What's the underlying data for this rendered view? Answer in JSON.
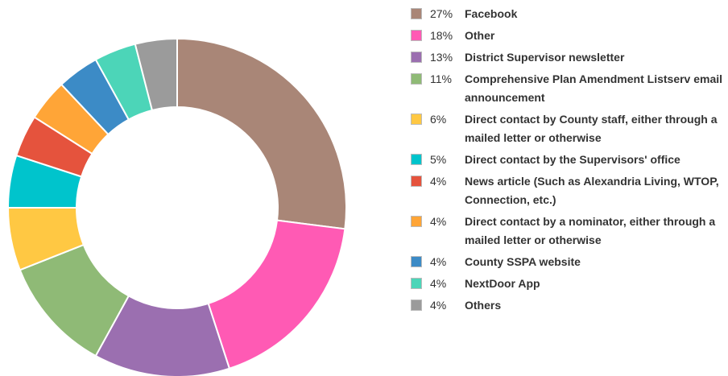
{
  "chart_data": {
    "type": "pie",
    "donut": true,
    "categories": [
      "Facebook",
      "Other",
      "District Supervisor newsletter",
      "Comprehensive Plan Amendment Listserv email announcement",
      "Direct contact by County staff, either through a mailed letter or otherwise",
      "Direct contact by the Supervisors' office",
      "News article (Such as Alexandria Living, WTOP, Connection, etc.)",
      "Direct contact by a nominator, either through a mailed letter or otherwise",
      "County SSPA website",
      "NextDoor App",
      "Others"
    ],
    "values": [
      27,
      18,
      13,
      11,
      6,
      5,
      4,
      4,
      4,
      4,
      4
    ],
    "value_labels": [
      "27%",
      "18%",
      "13%",
      "11%",
      "6%",
      "5%",
      "4%",
      "4%",
      "4%",
      "4%",
      "4%"
    ],
    "colors": [
      "#a98677",
      "#ff5ab4",
      "#9b6fb0",
      "#8fba76",
      "#ffc843",
      "#00c4cc",
      "#e5533d",
      "#ffa537",
      "#3c8bc6",
      "#4cd5b8",
      "#9b9b9b"
    ],
    "legend": "right"
  }
}
